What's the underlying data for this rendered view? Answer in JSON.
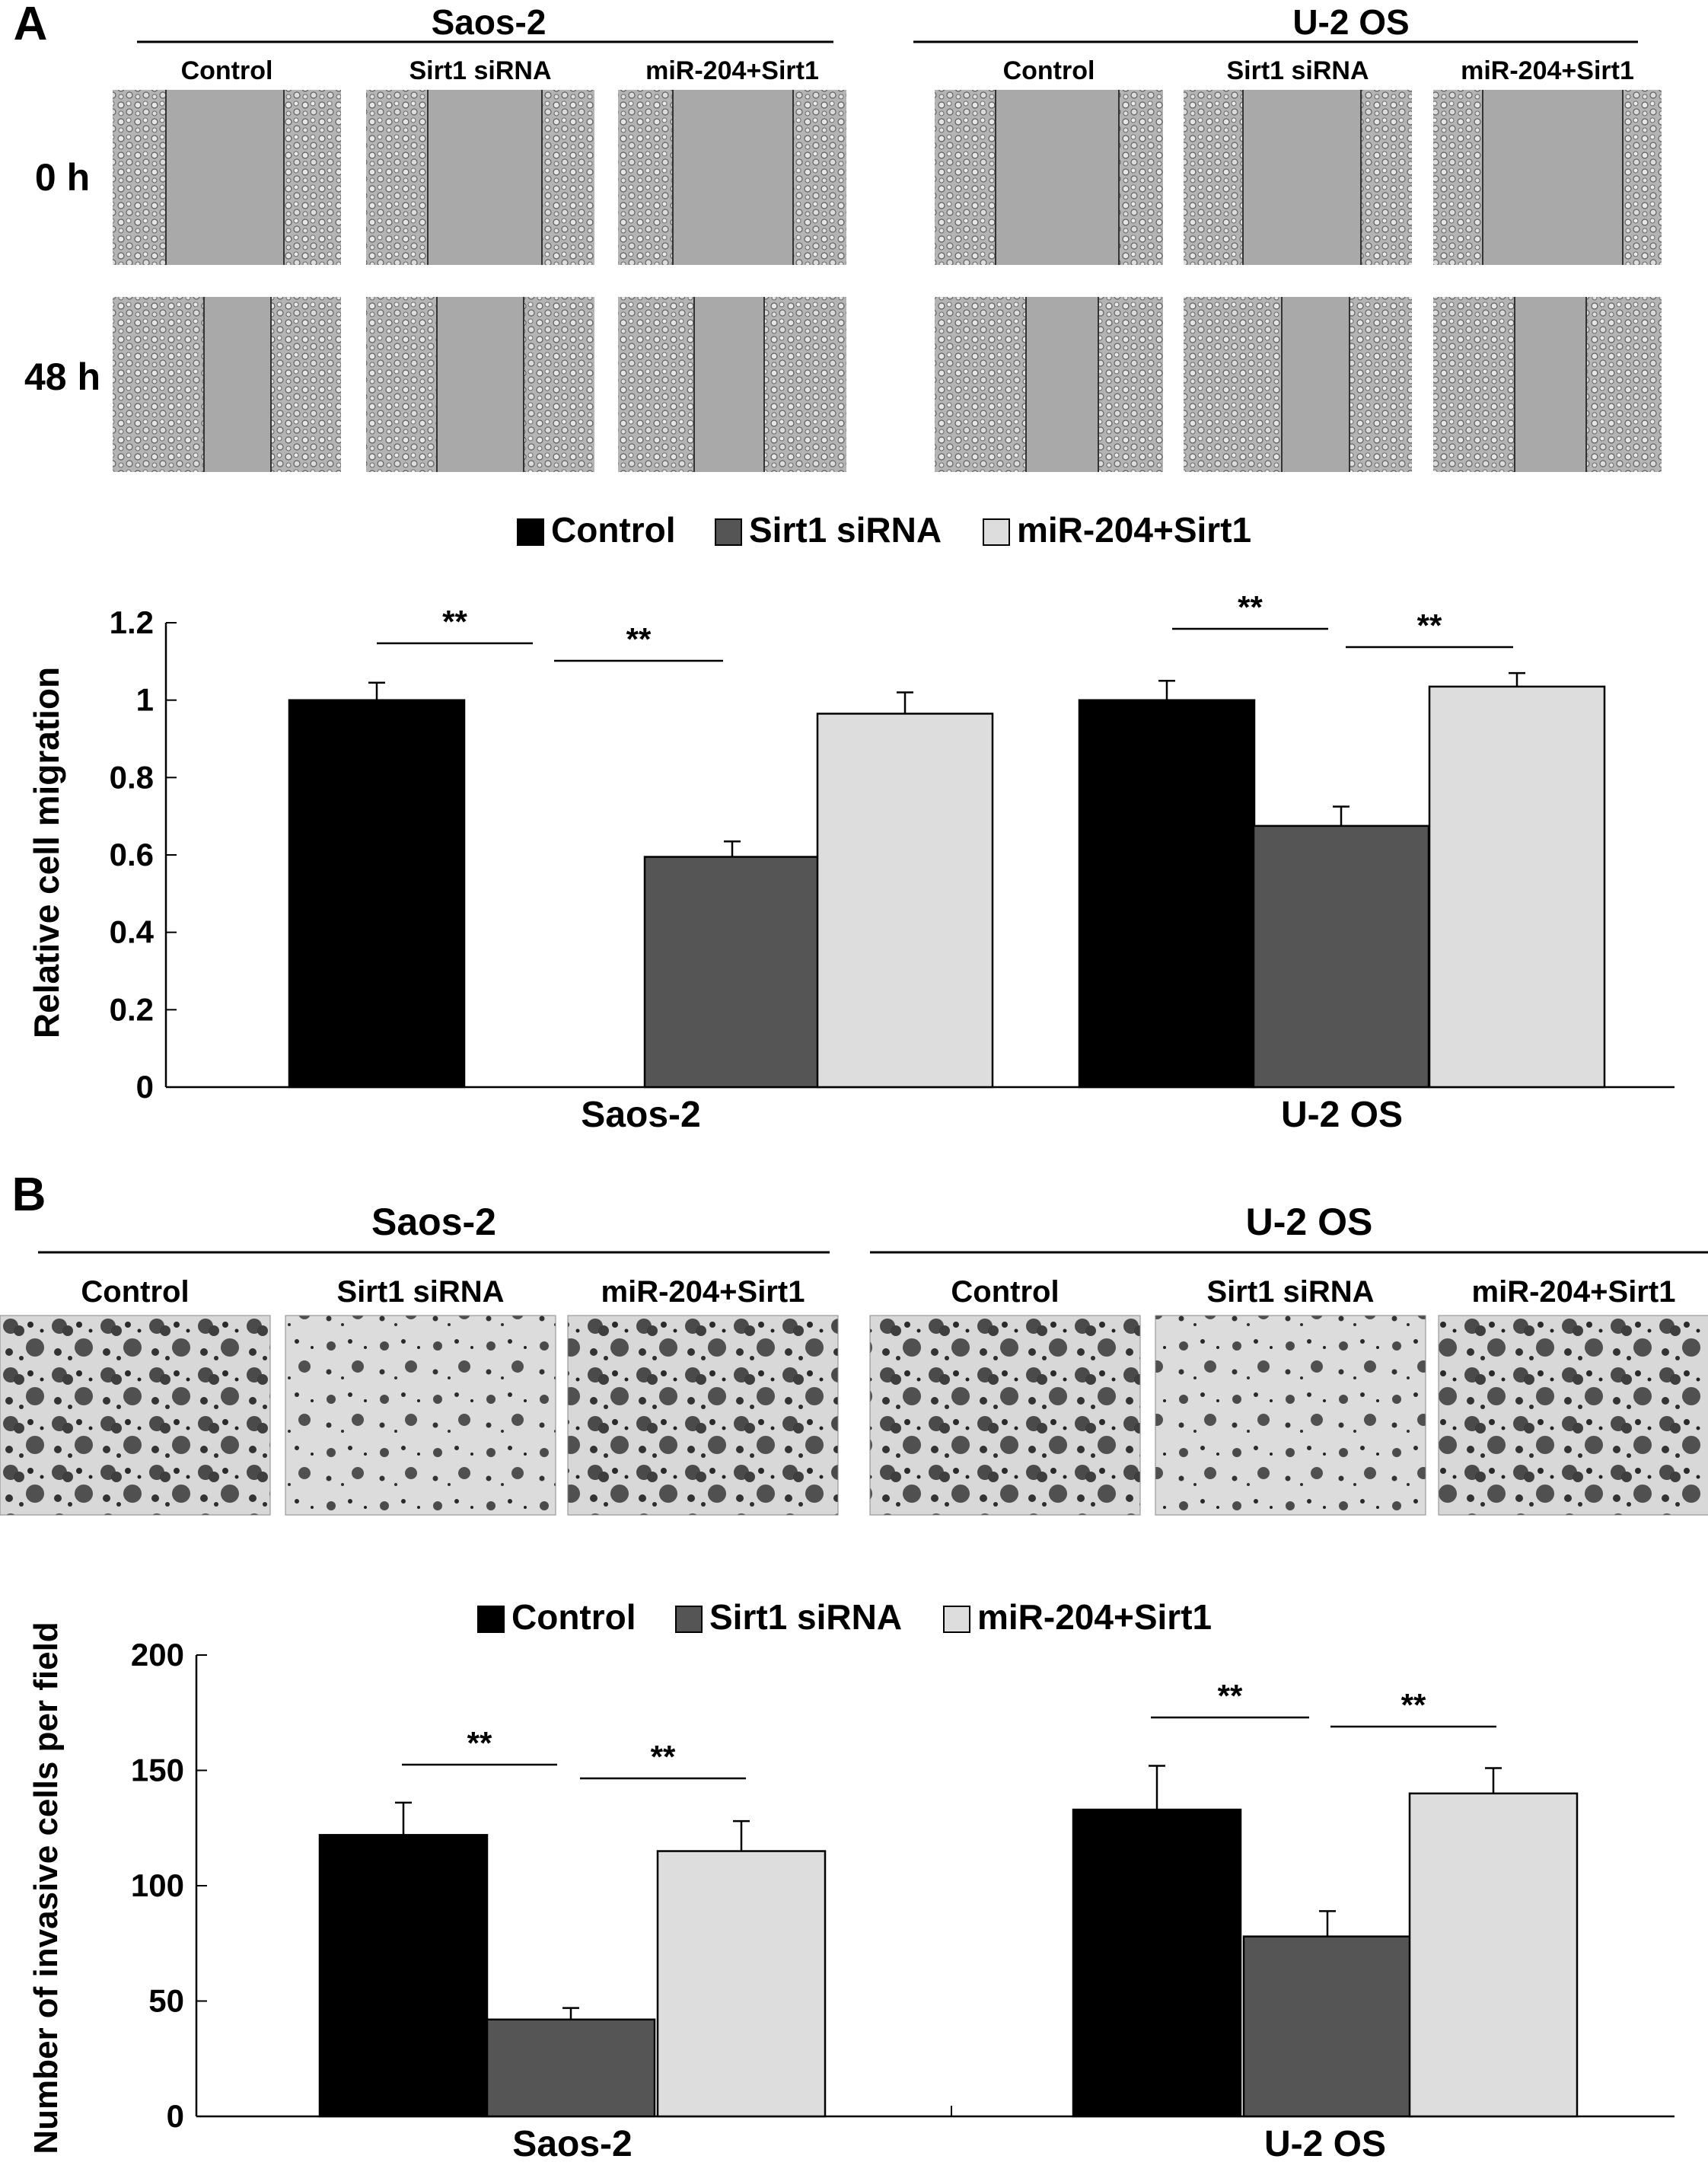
{
  "panel_a": {
    "label": "A",
    "micrograph_groups": [
      {
        "cell_line": "Saos-2",
        "conditions": [
          "Control",
          "Sirt1 siRNA",
          "miR-204+Sirt1"
        ]
      },
      {
        "cell_line": "U-2 OS",
        "conditions": [
          "Control",
          "Sirt1 siRNA",
          "miR-204+Sirt1"
        ]
      }
    ],
    "row_labels": [
      "0 h",
      "48 h"
    ]
  },
  "panel_b": {
    "label": "B",
    "micrograph_groups": [
      {
        "cell_line": "Saos-2",
        "conditions": [
          "Control",
          "Sirt1 siRNA",
          "miR-204+Sirt1"
        ]
      },
      {
        "cell_line": "U-2 OS",
        "conditions": [
          "Control",
          "Sirt1 siRNA",
          "miR-204+Sirt1"
        ]
      }
    ]
  },
  "colors": {
    "Control": "#000000",
    "Sirt1 siRNA": "#555555",
    "miR-204+Sirt1": "#dddddd"
  },
  "chart_data": [
    {
      "type": "bar",
      "categories": [
        "Saos-2",
        "U-2 OS"
      ],
      "series": [
        {
          "name": "Control",
          "values": [
            1.0,
            1.0
          ],
          "errors": [
            0.045,
            0.05
          ]
        },
        {
          "name": "Sirt1 siRNA",
          "values": [
            0.595,
            0.675
          ],
          "errors": [
            0.04,
            0.05
          ]
        },
        {
          "name": "miR-204+Sirt1",
          "values": [
            0.965,
            1.035
          ],
          "errors": [
            0.055,
            0.035
          ]
        }
      ],
      "ylabel": "Relative cell migration",
      "ylim": [
        0,
        1.2
      ],
      "yticks": [
        "0",
        "0.2",
        "0.4",
        "0.6",
        "0.8",
        "1",
        "1.2"
      ],
      "legend_position": "top-center",
      "significance": [
        "**",
        "**",
        "**",
        "**"
      ],
      "grid": false
    },
    {
      "type": "bar",
      "categories": [
        "Saos-2",
        "U-2 OS"
      ],
      "series": [
        {
          "name": "Control",
          "values": [
            122,
            133
          ],
          "errors": [
            14,
            19
          ]
        },
        {
          "name": "Sirt1 siRNA",
          "values": [
            42,
            78
          ],
          "errors": [
            5,
            11
          ]
        },
        {
          "name": "miR-204+Sirt1",
          "values": [
            115,
            140
          ],
          "errors": [
            13,
            11
          ]
        }
      ],
      "ylabel": "Number of invasive cells per field",
      "ylim": [
        0,
        200
      ],
      "yticks": [
        "0",
        "50",
        "100",
        "150",
        "200"
      ],
      "legend_position": "top-center",
      "significance": [
        "**",
        "**",
        "**",
        "**"
      ],
      "grid": false
    }
  ]
}
